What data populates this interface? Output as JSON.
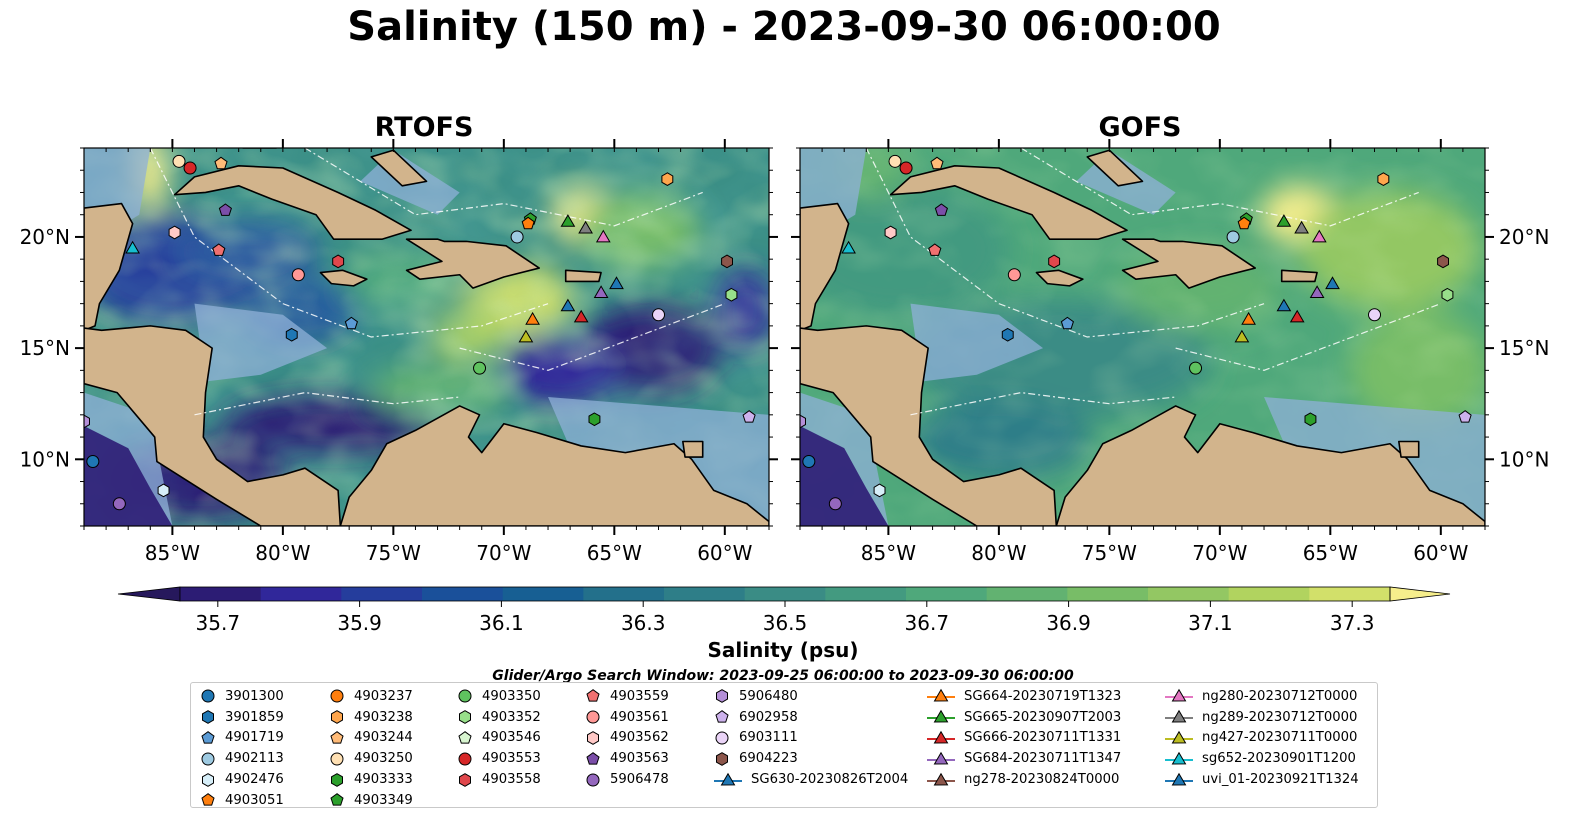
{
  "title": "Salinity (150 m) - 2023-09-30 06:00:00",
  "panels": [
    {
      "title": "RTOFS"
    },
    {
      "title": "GOFS"
    }
  ],
  "axes": {
    "x_ticks": [
      "85°W",
      "80°W",
      "75°W",
      "70°W",
      "65°W",
      "60°W"
    ],
    "y_ticks": [
      "20°N",
      "15°N",
      "10°N"
    ]
  },
  "colorbar": {
    "label": "Salinity (psu)",
    "tick_labels": [
      "35.7",
      "35.9",
      "36.1",
      "36.3",
      "36.5",
      "36.7",
      "36.9",
      "37.1",
      "37.3"
    ],
    "colors": [
      "#2c1c74",
      "#30279a",
      "#253d9c",
      "#1a509a",
      "#175f93",
      "#23708b",
      "#2e7e88",
      "#3a8c85",
      "#439a80",
      "#4fa87b",
      "#62b271",
      "#78bd67",
      "#93c763",
      "#b1d35f",
      "#d2e06a"
    ],
    "under_color": "#26185c",
    "over_color": "#f6ee8c"
  },
  "legend": {
    "search_window": "Glider/Argo Search Window: 2023-09-25 06:00:00 to 2023-09-30 06:00:00",
    "columns": [
      [
        {
          "label": "3901300",
          "marker": "circle",
          "color": "#1f77b4"
        },
        {
          "label": "3901859",
          "marker": "hexagon",
          "color": "#1f77b4"
        },
        {
          "label": "4901719",
          "marker": "pentagon",
          "color": "#5b9bd5"
        },
        {
          "label": "4902113",
          "marker": "circle",
          "color": "#9ecae1"
        },
        {
          "label": "4902476",
          "marker": "hexagon",
          "color": "#d6eef8"
        },
        {
          "label": "4903051",
          "marker": "pentagon",
          "color": "#ff7f0e"
        }
      ],
      [
        {
          "label": "4903237",
          "marker": "circle",
          "color": "#ff7f0e"
        },
        {
          "label": "4903238",
          "marker": "hexagon",
          "color": "#ffa64d"
        },
        {
          "label": "4903244",
          "marker": "pentagon",
          "color": "#ffbb78"
        },
        {
          "label": "4903250",
          "marker": "circle",
          "color": "#ffe0b3"
        },
        {
          "label": "4903333",
          "marker": "hexagon",
          "color": "#2ca02c"
        },
        {
          "label": "4903349",
          "marker": "pentagon",
          "color": "#2ca02c"
        }
      ],
      [
        {
          "label": "4903350",
          "marker": "circle",
          "color": "#5fc25f"
        },
        {
          "label": "4903352",
          "marker": "hexagon",
          "color": "#98df8a"
        },
        {
          "label": "4903546",
          "marker": "pentagon",
          "color": "#d8f5d0"
        },
        {
          "label": "4903553",
          "marker": "circle",
          "color": "#d62728"
        },
        {
          "label": "4903558",
          "marker": "hexagon",
          "color": "#e0474c"
        }
      ],
      [
        {
          "label": "4903559",
          "marker": "pentagon",
          "color": "#f07070"
        },
        {
          "label": "4903561",
          "marker": "circle",
          "color": "#ff9896"
        },
        {
          "label": "4903562",
          "marker": "hexagon",
          "color": "#ffc9c7"
        },
        {
          "label": "4903563",
          "marker": "pentagon",
          "color": "#7b4ea8"
        },
        {
          "label": "5906478",
          "marker": "circle",
          "color": "#9467bd"
        }
      ],
      [
        {
          "label": "5906480",
          "marker": "hexagon",
          "color": "#b48fd8"
        },
        {
          "label": "6902958",
          "marker": "pentagon",
          "color": "#cdb2ec"
        },
        {
          "label": "6903111",
          "marker": "circle",
          "color": "#ead4f7"
        },
        {
          "label": "6904223",
          "marker": "hexagon",
          "color": "#8c564b"
        },
        {
          "label": "SG630-20230826T2004",
          "marker": "triangle-line",
          "color": "#1f77b4"
        }
      ],
      [
        {
          "label": "SG664-20230719T1323",
          "marker": "triangle-line",
          "color": "#ff7f0e"
        },
        {
          "label": "SG665-20230907T2003",
          "marker": "triangle-line",
          "color": "#2ca02c"
        },
        {
          "label": "SG666-20230711T1331",
          "marker": "triangle-line",
          "color": "#d62728"
        },
        {
          "label": "SG684-20230711T1347",
          "marker": "triangle-line",
          "color": "#9467bd"
        },
        {
          "label": "ng278-20230824T0000",
          "marker": "triangle-line",
          "color": "#8c564b"
        }
      ],
      [
        {
          "label": "ng280-20230712T0000",
          "marker": "triangle-line",
          "color": "#e377c2"
        },
        {
          "label": "ng289-20230712T0000",
          "marker": "triangle-line",
          "color": "#7f7f7f"
        },
        {
          "label": "ng427-20230711T0000",
          "marker": "triangle-line",
          "color": "#bcbd22"
        },
        {
          "label": "sg652-20230901T1200",
          "marker": "triangle-line",
          "color": "#17becf"
        },
        {
          "label": "uvi_01-20230921T1324",
          "marker": "triangle-line",
          "color": "#1f77b4"
        }
      ]
    ]
  },
  "chart_data": {
    "type": "heatmap",
    "title": "Salinity (150 m) - 2023-09-30 06:00:00",
    "variable": "Salinity",
    "depth_m": 150,
    "units": "psu",
    "colorbar_range": [
      35.7,
      37.3
    ],
    "colorbar_ticks": [
      35.7,
      35.9,
      36.1,
      36.3,
      36.5,
      36.7,
      36.9,
      37.1,
      37.3
    ],
    "extend": "both",
    "xlim_lon": [
      -89.0,
      -58.0
    ],
    "ylim_lat": [
      7.0,
      24.0
    ],
    "panels": [
      "RTOFS",
      "GOFS"
    ],
    "markers": [
      {
        "id": "4903250",
        "lon": -84.7,
        "lat": 23.4
      },
      {
        "id": "4903553",
        "lon": -84.2,
        "lat": 23.1
      },
      {
        "id": "4903244",
        "lon": -82.8,
        "lat": 23.3
      },
      {
        "id": "4903563",
        "lon": -82.6,
        "lat": 21.2
      },
      {
        "id": "4903562",
        "lon": -84.9,
        "lat": 20.2
      },
      {
        "id": "4903559",
        "lon": -82.9,
        "lat": 19.4
      },
      {
        "id": "sg652-20230901T1200",
        "lon": -86.8,
        "lat": 19.5
      },
      {
        "id": "4903561",
        "lon": -79.3,
        "lat": 18.3
      },
      {
        "id": "4903558",
        "lon": -77.5,
        "lat": 18.9
      },
      {
        "id": "4901719",
        "lon": -76.9,
        "lat": 16.1
      },
      {
        "id": "3901859",
        "lon": -79.6,
        "lat": 15.6
      },
      {
        "id": "4903349",
        "lon": -68.8,
        "lat": 20.8
      },
      {
        "id": "4903051",
        "lon": -68.9,
        "lat": 20.6
      },
      {
        "id": "4902113",
        "lon": -69.4,
        "lat": 20.0
      },
      {
        "id": "SG665-20230907T2003",
        "lon": -67.1,
        "lat": 20.7
      },
      {
        "id": "ng289-20230712T0000",
        "lon": -66.3,
        "lat": 20.4
      },
      {
        "id": "ng280-20230712T0000",
        "lon": -65.5,
        "lat": 20.0
      },
      {
        "id": "4903238",
        "lon": -62.6,
        "lat": 22.6
      },
      {
        "id": "6904223",
        "lon": -59.9,
        "lat": 18.9
      },
      {
        "id": "4903352",
        "lon": -59.7,
        "lat": 17.4
      },
      {
        "id": "uvi_01-20230921T1324",
        "lon": -64.9,
        "lat": 17.9
      },
      {
        "id": "SG684-20230711T1347",
        "lon": -65.6,
        "lat": 17.5
      },
      {
        "id": "SG630-20230826T2004",
        "lon": -67.1,
        "lat": 16.9
      },
      {
        "id": "SG666-20230711T1331",
        "lon": -66.5,
        "lat": 16.4
      },
      {
        "id": "SG664-20230719T1323",
        "lon": -68.7,
        "lat": 16.3
      },
      {
        "id": "ng427-20230711T0000",
        "lon": -69.0,
        "lat": 15.5
      },
      {
        "id": "6903111",
        "lon": -63.0,
        "lat": 16.5
      },
      {
        "id": "4903350",
        "lon": -71.1,
        "lat": 14.1
      },
      {
        "id": "4903333",
        "lon": -65.9,
        "lat": 11.8
      },
      {
        "id": "6902958",
        "lon": -58.9,
        "lat": 11.9
      },
      {
        "id": "5906480",
        "lon": -89.0,
        "lat": 11.7
      },
      {
        "id": "3901300",
        "lon": -88.6,
        "lat": 9.9
      },
      {
        "id": "5906478",
        "lon": -87.4,
        "lat": 8.0
      },
      {
        "id": "4902476",
        "lon": -85.4,
        "lat": 8.6
      }
    ]
  }
}
